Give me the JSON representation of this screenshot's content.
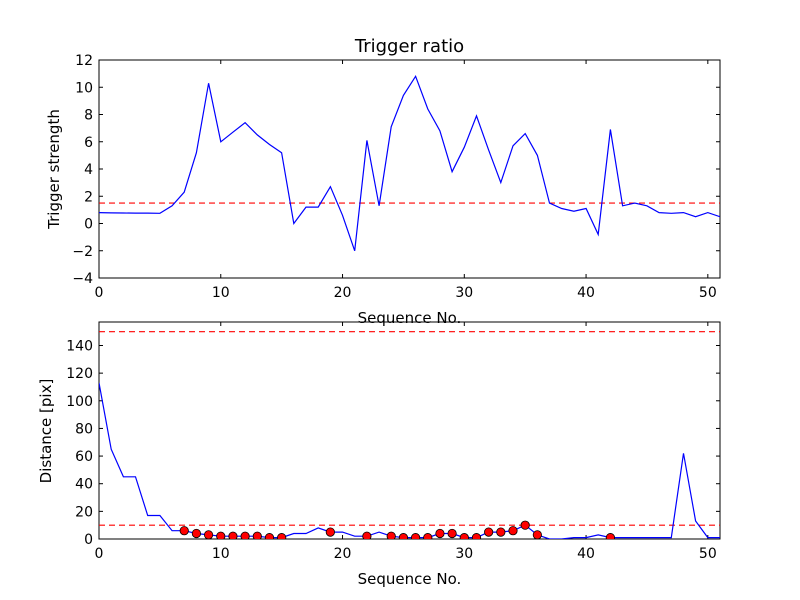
{
  "chart_data": [
    {
      "type": "line",
      "title": "Trigger ratio",
      "xlabel": "Sequence No.",
      "ylabel": "Trigger strength",
      "xlim": [
        0,
        51
      ],
      "ylim": [
        -4,
        12
      ],
      "xticks": [
        "0",
        "10",
        "20",
        "30",
        "40",
        "50"
      ],
      "yticks": [
        "−4",
        "−2",
        "0",
        "2",
        "4",
        "6",
        "8",
        "10",
        "12"
      ],
      "grid": false,
      "series": [
        {
          "color": "#0000ff",
          "x": [
            0,
            1,
            2,
            3,
            4,
            5,
            6,
            7,
            8,
            9,
            10,
            11,
            12,
            13,
            14,
            15,
            16,
            17,
            18,
            19,
            20,
            21,
            22,
            23,
            24,
            25,
            26,
            27,
            28,
            29,
            30,
            31,
            32,
            33,
            34,
            35,
            36,
            37,
            38,
            39,
            40,
            41,
            42,
            43,
            44,
            45,
            46,
            47,
            48,
            49,
            50,
            51
          ],
          "y": [
            0.8,
            0.78,
            0.77,
            0.76,
            0.76,
            0.75,
            1.3,
            2.3,
            5.2,
            10.3,
            6.0,
            6.7,
            7.4,
            6.5,
            5.8,
            5.2,
            0.0,
            1.2,
            1.2,
            2.7,
            0.6,
            -2.0,
            6.1,
            1.3,
            7.1,
            9.4,
            10.8,
            8.4,
            6.8,
            3.8,
            5.6,
            7.9,
            5.4,
            3.0,
            5.7,
            6.6,
            5.0,
            1.5,
            1.1,
            0.9,
            1.1,
            -0.8,
            6.9,
            1.3,
            1.5,
            1.3,
            0.8,
            0.75,
            0.8,
            0.5,
            0.8,
            0.5
          ]
        }
      ],
      "threshold": {
        "y": 1.5,
        "color": "#ff0000",
        "style": "dashed"
      }
    },
    {
      "type": "line",
      "title": "",
      "xlabel": "Sequence No.",
      "ylabel": "Distance [pix]",
      "xlim": [
        0,
        51
      ],
      "ylim": [
        0,
        157
      ],
      "xticks": [
        "0",
        "10",
        "20",
        "30",
        "40",
        "50"
      ],
      "yticks": [
        "0",
        "20",
        "40",
        "60",
        "80",
        "100",
        "120",
        "140"
      ],
      "grid": false,
      "series": [
        {
          "color": "#0000ff",
          "x": [
            0,
            1,
            2,
            3,
            4,
            5,
            6,
            7,
            8,
            9,
            10,
            11,
            12,
            13,
            14,
            15,
            16,
            17,
            18,
            19,
            20,
            21,
            22,
            23,
            24,
            25,
            26,
            27,
            28,
            29,
            30,
            31,
            32,
            33,
            34,
            35,
            36,
            37,
            38,
            39,
            40,
            41,
            42,
            43,
            44,
            45,
            46,
            47,
            48,
            49,
            50,
            51
          ],
          "y": [
            113,
            65,
            45,
            45,
            17,
            17,
            6,
            6,
            4,
            3,
            2,
            2,
            2,
            2,
            1,
            1,
            4,
            4,
            8,
            5,
            5,
            2,
            2,
            5,
            2,
            1,
            1,
            1,
            4,
            4,
            1,
            1,
            5,
            5,
            6,
            10,
            3,
            0,
            0,
            1,
            1,
            3,
            1,
            1,
            1,
            1,
            1,
            1,
            62,
            13,
            1,
            1
          ]
        }
      ],
      "markers": {
        "color": "#ff0000",
        "x": [
          7,
          8,
          9,
          10,
          11,
          12,
          13,
          14,
          15,
          19,
          22,
          24,
          25,
          26,
          27,
          28,
          29,
          30,
          31,
          32,
          33,
          34,
          35,
          36,
          42
        ],
        "y": [
          6,
          4,
          3,
          2,
          2,
          2,
          2,
          1,
          1,
          5,
          2,
          2,
          1,
          1,
          1,
          4,
          4,
          1,
          1,
          5,
          5,
          6,
          10,
          3,
          1
        ]
      },
      "thresholds": [
        {
          "y": 150,
          "color": "#ff0000",
          "style": "dashed"
        },
        {
          "y": 10,
          "color": "#ff0000",
          "style": "dashed"
        }
      ]
    }
  ]
}
